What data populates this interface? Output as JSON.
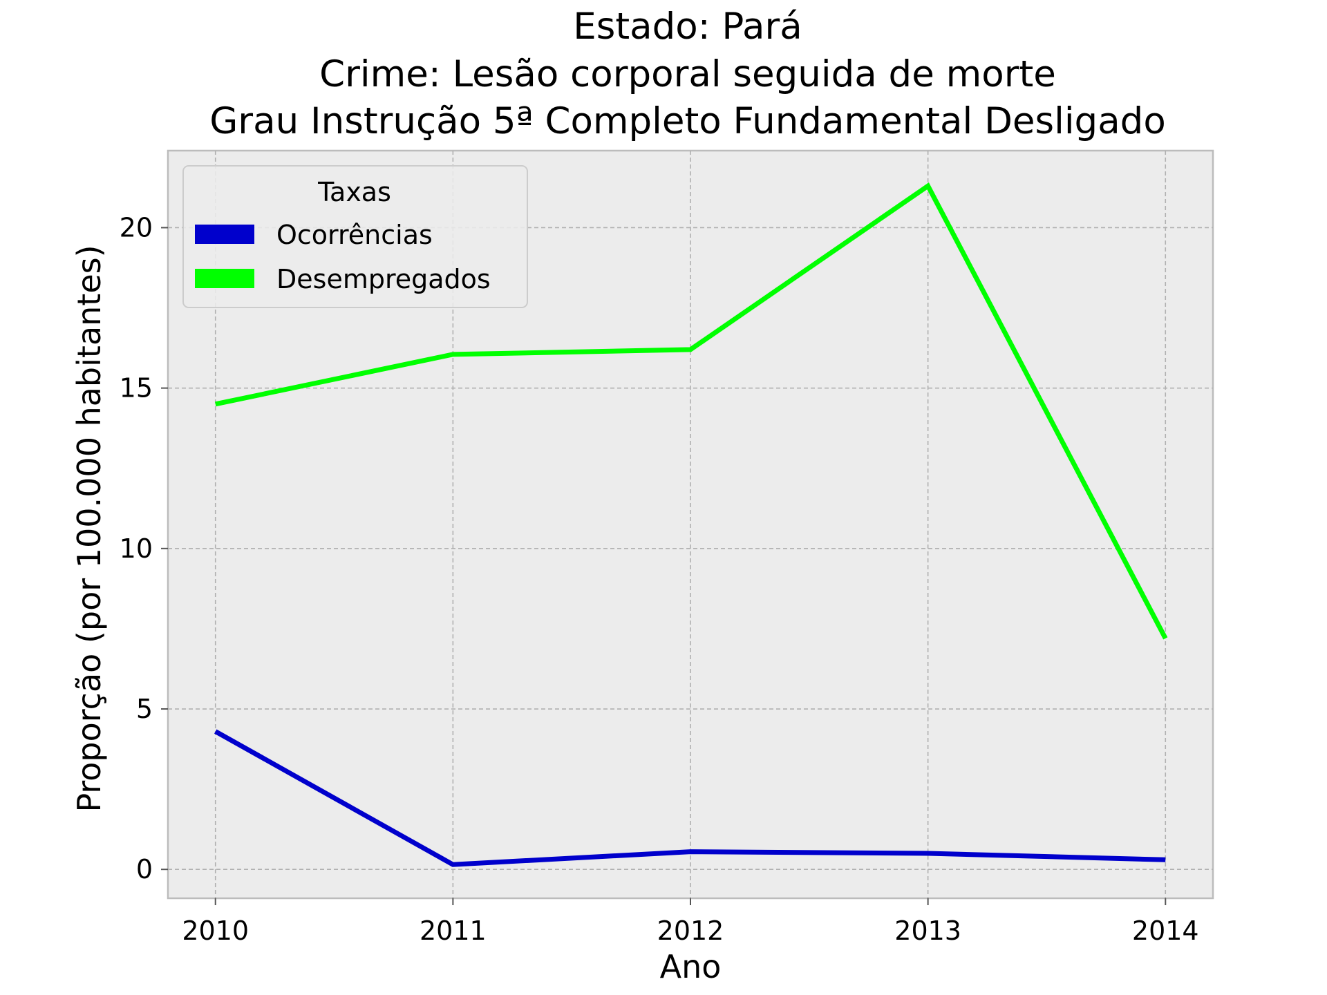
{
  "chart_data": {
    "type": "line",
    "title_lines": [
      "Estado: Pará",
      "Crime: Lesão corporal seguida de morte",
      "Grau Instrução  5ª Completo Fundamental   Desligado"
    ],
    "xlabel": "Ano",
    "ylabel": "Proporção (por 100.000 habitantes)",
    "x": [
      2010,
      2011,
      2012,
      2013,
      2014
    ],
    "x_tick_labels": [
      "2010",
      "2011",
      "2012",
      "2013",
      "2014"
    ],
    "y_ticks": [
      0,
      5,
      10,
      15,
      20
    ],
    "y_tick_labels": [
      "0",
      "5",
      "10",
      "15",
      "20"
    ],
    "xlim": [
      2009.8,
      2014.2
    ],
    "ylim": [
      -0.9,
      22.4
    ],
    "grid": true,
    "legend": {
      "title": "Taxas",
      "placement": "upper-left"
    },
    "series": [
      {
        "name": "Ocorrências",
        "color": "#0000cc",
        "values": [
          4.3,
          0.15,
          0.55,
          0.5,
          0.3
        ]
      },
      {
        "name": "Desempregados",
        "color": "#00ff00",
        "values": [
          14.5,
          16.05,
          16.2,
          21.3,
          7.2
        ]
      }
    ],
    "colors": {
      "plot_background": "#ececec",
      "grid": "#b0b0b0",
      "axes_edge": "#bcbcbc"
    }
  }
}
